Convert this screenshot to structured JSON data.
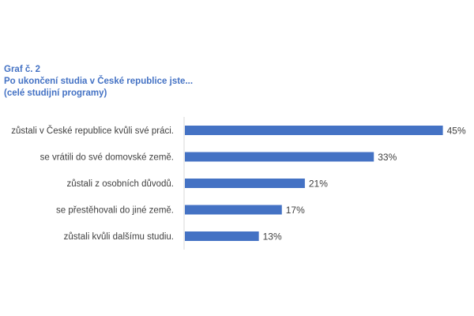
{
  "chart_data": {
    "type": "bar",
    "orientation": "horizontal",
    "title_lines": [
      "Graf č. 2",
      "Po ukončení studia v České republice jste...",
      "(celé studijní programy)"
    ],
    "categories": [
      "zůstali v České republice kvůli své práci.",
      "se vrátili do své domovské země.",
      "zůstali z osobních důvodů.",
      "se přestěhovali do jiné země.",
      "zůstali kvůli dalšímu studiu."
    ],
    "values": [
      45,
      33,
      21,
      17,
      13
    ],
    "value_labels": [
      "45%",
      "33%",
      "21%",
      "17%",
      "13%"
    ],
    "unit": "%",
    "xlim": [
      0,
      50
    ],
    "grid": false,
    "legend": "none",
    "colors": {
      "bar": "#4472c4",
      "title": "#4472c4",
      "text": "#404040",
      "axis": "#d9d9d9"
    }
  }
}
